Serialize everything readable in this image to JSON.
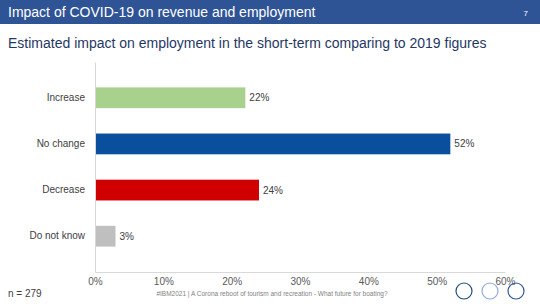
{
  "slide": {
    "title": "Impact of COVID-19 on revenue and employment",
    "page": 7,
    "footer": "#IBM2021 | A Corona reboot of tourism and recreation - What future for boating?"
  },
  "chart_data": {
    "type": "bar",
    "orientation": "horizontal",
    "title": "Estimated impact on employment in the short-term comparing to 2019 figures",
    "categories": [
      "Increase",
      "No change",
      "Decrease",
      "Do not know"
    ],
    "values": [
      22,
      52,
      24,
      3
    ],
    "value_labels": [
      "22%",
      "52%",
      "24%",
      "3%"
    ],
    "colors": [
      "#a9d18e",
      "#0a4f9e",
      "#d00000",
      "#bfbfbf"
    ],
    "xlim": [
      0,
      60
    ],
    "xticks": [
      {
        "value": 0,
        "label": "0%"
      },
      {
        "value": 10,
        "label": "10%"
      },
      {
        "value": 20,
        "label": "20%"
      },
      {
        "value": 30,
        "label": "30%"
      },
      {
        "value": 40,
        "label": "40%"
      },
      {
        "value": 50,
        "label": "50%"
      },
      {
        "value": 60,
        "label": "60%"
      }
    ],
    "grid": false,
    "data_labels": true,
    "annotations": [
      "n = 279"
    ]
  }
}
